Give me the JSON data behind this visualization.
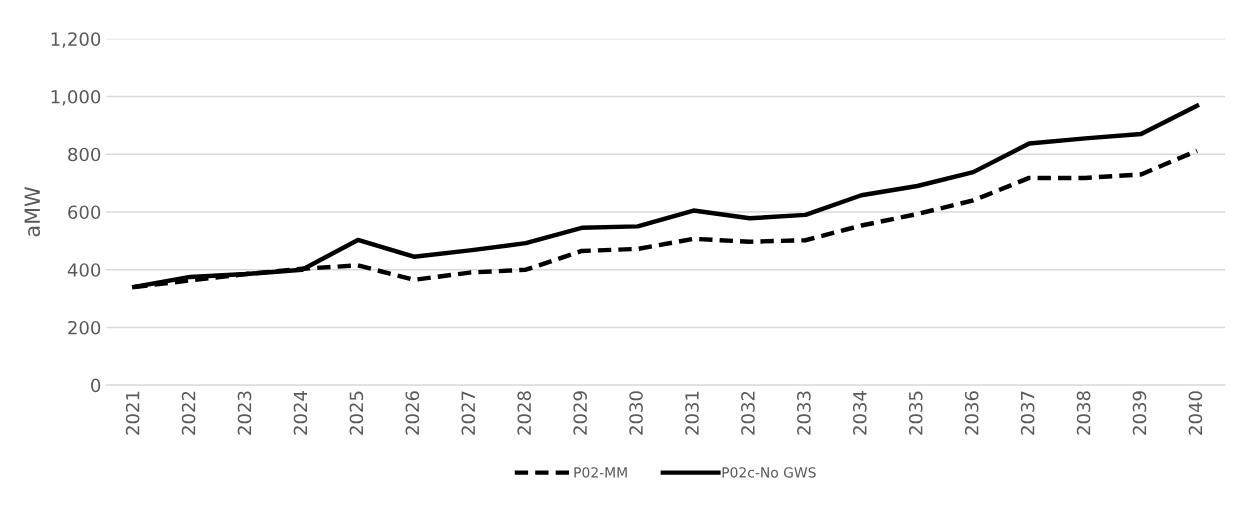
{
  "chart_data": {
    "type": "line",
    "ylabel": "aMW",
    "categories": [
      "2021",
      "2022",
      "2023",
      "2024",
      "2025",
      "2026",
      "2027",
      "2028",
      "2029",
      "2030",
      "2031",
      "2032",
      "2033",
      "2034",
      "2035",
      "2036",
      "2037",
      "2038",
      "2039",
      "2040"
    ],
    "series": [
      {
        "name": "P02-MM",
        "color": "#000000",
        "line_style": "dashed",
        "values": [
          340,
          363,
          385,
          403,
          415,
          365,
          390,
          400,
          465,
          472,
          507,
          497,
          502,
          553,
          593,
          640,
          718,
          718,
          730,
          812
        ]
      },
      {
        "name": "P02c-No GWS",
        "color": "#000000",
        "line_style": "solid",
        "values": [
          340,
          375,
          385,
          400,
          503,
          445,
          467,
          492,
          545,
          550,
          605,
          578,
          590,
          658,
          690,
          738,
          837,
          855,
          870,
          968
        ]
      }
    ],
    "ylim": [
      0,
      1200
    ],
    "yticks": [
      {
        "value": 0,
        "label": "0"
      },
      {
        "value": 200,
        "label": "200"
      },
      {
        "value": 400,
        "label": "400"
      },
      {
        "value": 600,
        "label": "600"
      },
      {
        "value": 800,
        "label": "800"
      },
      {
        "value": 1000,
        "label": "1,000"
      },
      {
        "value": 1200,
        "label": "1,200"
      }
    ],
    "grid": "y",
    "legend": "bottom",
    "marker": "none"
  }
}
